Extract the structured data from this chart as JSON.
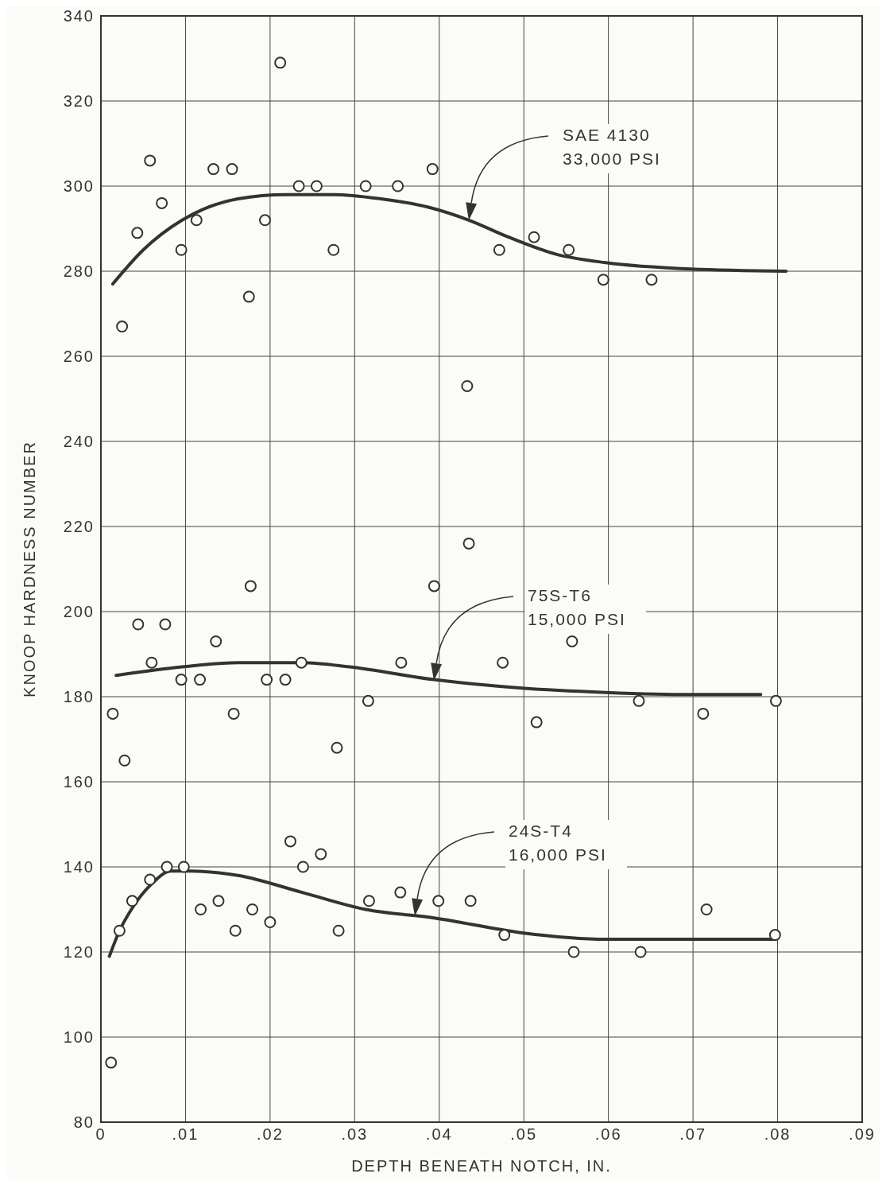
{
  "chart_data": {
    "type": "scatter",
    "xlabel": "DEPTH  BENEATH  NOTCH,  IN.",
    "ylabel": "KNOOP  HARDNESS  NUMBER",
    "xlim": [
      0,
      0.09
    ],
    "ylim": [
      80,
      340
    ],
    "xticks": [
      0,
      {
        "value": 0.01,
        "label": ".01"
      },
      {
        "value": 0.02,
        "label": ".02"
      },
      {
        "value": 0.03,
        "label": ".03"
      },
      {
        "value": 0.04,
        "label": ".04"
      },
      {
        "value": 0.05,
        "label": ".05"
      },
      {
        "value": 0.06,
        "label": ".06"
      },
      {
        "value": 0.07,
        "label": ".07"
      },
      {
        "value": 0.08,
        "label": ".08"
      },
      {
        "value": 0.09,
        "label": ".09"
      }
    ],
    "yticks": [
      80,
      100,
      120,
      140,
      160,
      180,
      200,
      220,
      240,
      260,
      280,
      300,
      320,
      340
    ],
    "grid": true,
    "marker": "circle",
    "line_style": "solid",
    "series": [
      {
        "color": "#333333",
        "x": [
          0.0025,
          0.0043,
          0.0058,
          0.0072,
          0.0095,
          0.0113,
          0.0133,
          0.0155,
          0.0175,
          0.0194,
          0.0212,
          0.0234,
          0.0255,
          0.0275,
          0.0313,
          0.0351,
          0.0392,
          0.0433,
          0.0471,
          0.0512,
          0.0553,
          0.0594,
          0.0651
        ],
        "values": [
          267,
          289,
          306,
          296,
          285,
          292,
          304,
          304,
          274,
          292,
          329,
          300,
          300,
          285,
          300,
          300,
          304,
          253,
          285,
          288,
          285,
          278,
          278
        ]
      },
      {
        "color": "#333333",
        "x": [
          0.0014,
          0.0028,
          0.0044,
          0.006,
          0.0076,
          0.0095,
          0.0117,
          0.0136,
          0.0157,
          0.0177,
          0.0196,
          0.0218,
          0.0237,
          0.0279,
          0.0316,
          0.0355,
          0.0394,
          0.0435,
          0.0475,
          0.0515,
          0.0557,
          0.0636,
          0.0712,
          0.0798
        ],
        "values": [
          176,
          165,
          197,
          188,
          197,
          184,
          184,
          193,
          176,
          206,
          184,
          184,
          188,
          168,
          179,
          188,
          206,
          216,
          188,
          174,
          193,
          179,
          176,
          179
        ]
      },
      {
        "color": "#333333",
        "x": [
          0.0012,
          0.0022,
          0.0037,
          0.0058,
          0.0078,
          0.0098,
          0.0118,
          0.0139,
          0.0159,
          0.0179,
          0.02,
          0.0224,
          0.0239,
          0.026,
          0.0281,
          0.0317,
          0.0354,
          0.0399,
          0.0437,
          0.0477,
          0.0559,
          0.0638,
          0.0716,
          0.0797
        ],
        "values": [
          94,
          125,
          132,
          137,
          140,
          140,
          130,
          132,
          125,
          130,
          127,
          146,
          140,
          143,
          125,
          132,
          134,
          132,
          132,
          124,
          120,
          120,
          130,
          124
        ]
      },
      {
        "type": "line",
        "marker": "none",
        "color": "#333333",
        "x": [
          0.0014,
          0.005,
          0.0096,
          0.0162,
          0.0219,
          0.0275,
          0.0331,
          0.0388,
          0.0435,
          0.0482,
          0.0538,
          0.0597,
          0.0698,
          0.081
        ],
        "values": [
          277,
          285,
          292,
          297,
          298,
          298,
          297,
          295,
          292,
          288,
          284,
          282,
          280.5,
          280
        ]
      },
      {
        "type": "line",
        "marker": "none",
        "color": "#333333",
        "x": [
          0.0018,
          0.0096,
          0.0162,
          0.0238,
          0.0294,
          0.0394,
          0.0498,
          0.0597,
          0.0698,
          0.078
        ],
        "values": [
          185,
          187,
          188,
          188,
          187,
          184,
          182,
          181,
          180.5,
          180.5
        ]
      },
      {
        "type": "line",
        "marker": "none",
        "color": "#333333",
        "x": [
          0.001,
          0.0022,
          0.0036,
          0.006,
          0.0083,
          0.0106,
          0.0162,
          0.0238,
          0.0313,
          0.0394,
          0.0498,
          0.0597,
          0.0698,
          0.0796
        ],
        "values": [
          119,
          125,
          130,
          136,
          139,
          139,
          138,
          134,
          130,
          128,
          124.5,
          123,
          123,
          123
        ]
      }
    ],
    "annotations": [
      "SAE 4130\n33,000 PSI",
      "75S-T6\n15,000 PSI",
      "24S-T4\n16,000 PSI"
    ]
  }
}
